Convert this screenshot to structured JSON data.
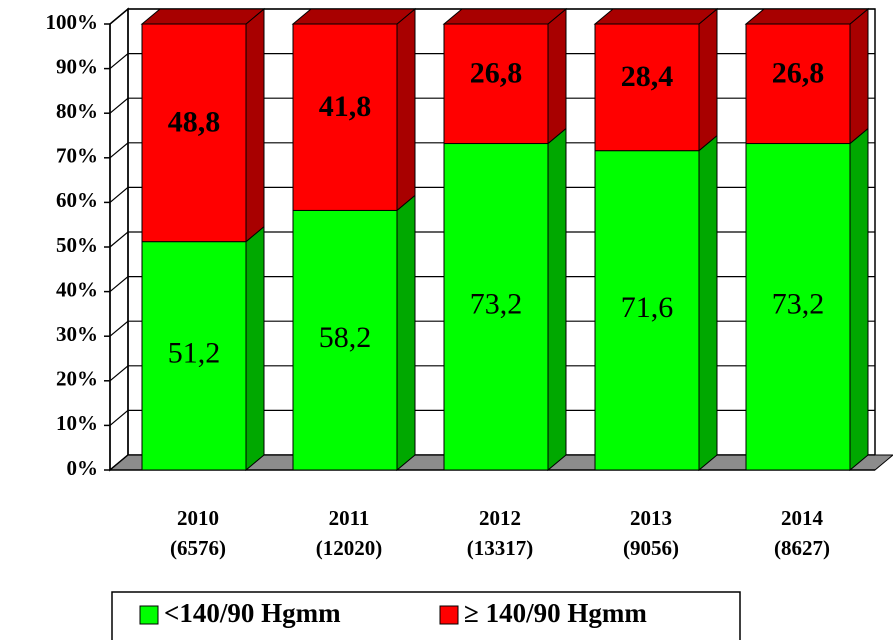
{
  "chart_data": {
    "type": "bar",
    "stacked": true,
    "categories": [
      "2010\n(6576)",
      "2011\n(12020)",
      "2012\n(13317)",
      "2013\n(9056)",
      "2014\n(8627)"
    ],
    "series": [
      {
        "name": "<140/90 Hgmm",
        "color": "#00ff00",
        "side_color": "#00a800",
        "values": [
          51.2,
          58.2,
          73.2,
          71.6,
          73.2
        ],
        "value_labels": [
          "51,2",
          "58,2",
          "73,2",
          "71,6",
          "73,2"
        ]
      },
      {
        "name": "≥ 140/90 Hgmm",
        "color": "#ff0000",
        "side_color": "#a80000",
        "values": [
          48.8,
          41.8,
          26.8,
          28.4,
          26.8
        ],
        "value_labels": [
          "48,8",
          "41,8",
          "26,8",
          "28,4",
          "26,8"
        ]
      }
    ],
    "ylim": [
      0,
      100
    ],
    "yticks": [
      {
        "value": 0,
        "label": "0%"
      },
      {
        "value": 10,
        "label": "10%"
      },
      {
        "value": 20,
        "label": "20%"
      },
      {
        "value": 30,
        "label": "30%"
      },
      {
        "value": 40,
        "label": "40%"
      },
      {
        "value": 50,
        "label": "50%"
      },
      {
        "value": 60,
        "label": "60%"
      },
      {
        "value": 70,
        "label": "70%"
      },
      {
        "value": 80,
        "label": "80%"
      },
      {
        "value": 90,
        "label": "90%"
      },
      {
        "value": 100,
        "label": "100%"
      }
    ],
    "grid": true,
    "legend": "bottom"
  }
}
